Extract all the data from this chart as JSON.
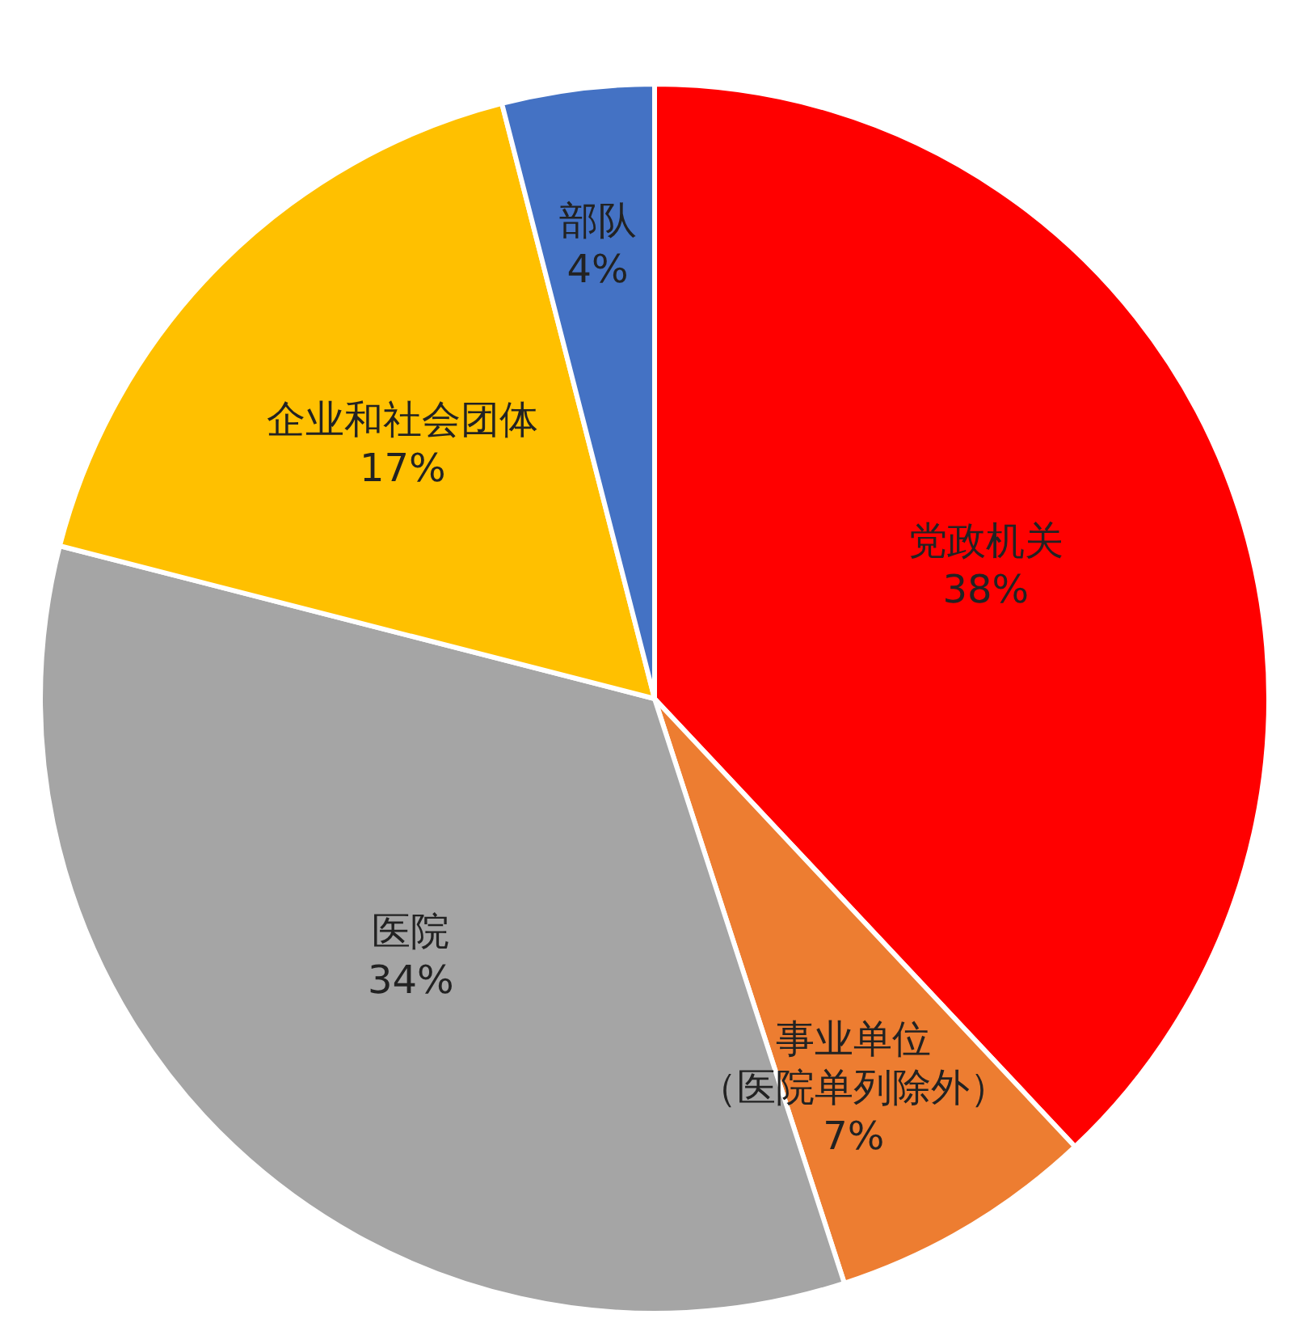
{
  "chart_data": {
    "type": "pie",
    "categories": [
      "党政机关",
      "事业单位（医院单列除外）",
      "医院",
      "企业和社会团体",
      "部队"
    ],
    "values": [
      38,
      7,
      34,
      17,
      4
    ],
    "colors": [
      "#ff0000",
      "#ed7d31",
      "#a5a5a5",
      "#ffc000",
      "#4472c4"
    ],
    "value_labels": [
      "38%",
      "7%",
      "34%",
      "17%",
      "4%"
    ]
  }
}
